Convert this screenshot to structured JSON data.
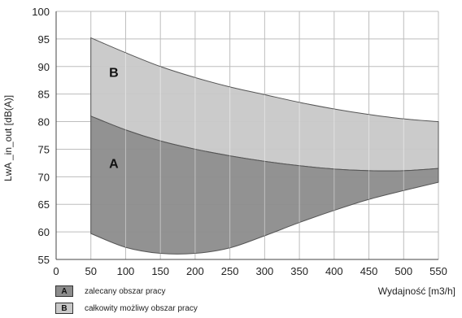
{
  "chart_data": {
    "type": "area",
    "ylabel": "LwA _in_out [dB(A)]",
    "xlabel": "Wydajność [m3/h]",
    "xlim": [
      0,
      550
    ],
    "ylim": [
      55,
      100
    ],
    "xticks": [
      0,
      50,
      100,
      150,
      200,
      250,
      300,
      350,
      400,
      450,
      500,
      550
    ],
    "yticks": [
      55,
      60,
      65,
      70,
      75,
      80,
      85,
      90,
      95,
      100
    ],
    "grid": true,
    "regions": [
      {
        "label": "A",
        "legend": "zalecany obszar pracy",
        "color": "#8c8c8c",
        "x": [
          50,
          100,
          150,
          200,
          250,
          300,
          350,
          400,
          450,
          500,
          550
        ],
        "upper": [
          81,
          78.5,
          76.5,
          75,
          73.8,
          72.8,
          72,
          71.4,
          71.1,
          71.1,
          71.5
        ],
        "lower": [
          59.7,
          57.2,
          56.1,
          56.1,
          57.1,
          59.3,
          61.7,
          63.9,
          65.9,
          67.5,
          69
        ]
      },
      {
        "label": "B",
        "legend": "całkowity możliwy obszar pracy",
        "color": "#c8c8c8",
        "x": [
          50,
          100,
          150,
          200,
          250,
          300,
          350,
          400,
          450,
          500,
          550
        ],
        "upper": [
          95.2,
          92.5,
          90,
          88,
          86.3,
          84.9,
          83.5,
          82.3,
          81.3,
          80.5,
          80
        ],
        "lower": [
          81,
          78.5,
          76.5,
          75,
          73.8,
          72.8,
          72,
          71.4,
          71.1,
          71.1,
          71.5
        ]
      }
    ],
    "region_label_points": [
      {
        "label": "B",
        "x": 83,
        "y": 89
      },
      {
        "label": "A",
        "x": 83,
        "y": 72.5
      }
    ]
  }
}
